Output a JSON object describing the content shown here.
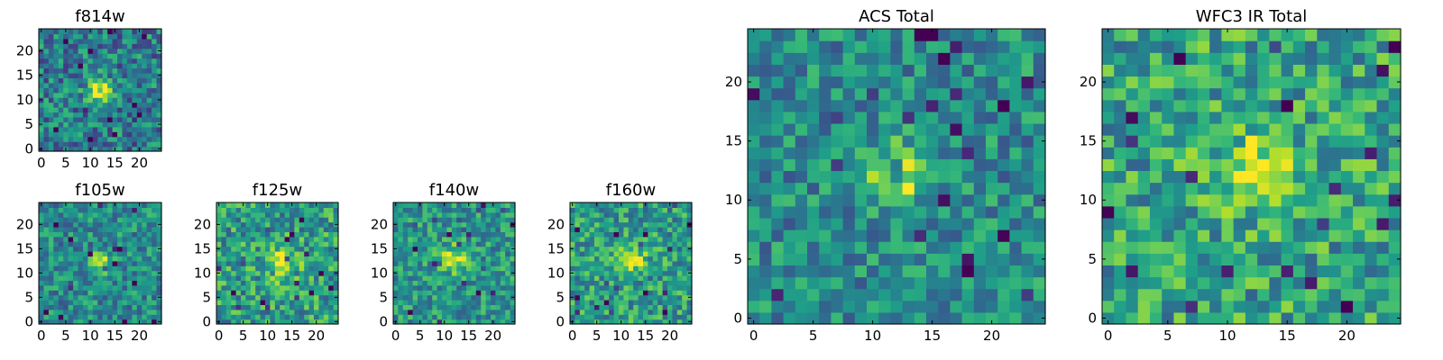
{
  "chart_data": [
    {
      "type": "heatmap",
      "title": "f814w",
      "cmap": "viridis",
      "grid": "25x25",
      "xlim": [
        0,
        24
      ],
      "ylim": [
        0,
        24
      ],
      "xticks": [
        "0",
        "5",
        "10",
        "15",
        "20"
      ],
      "yticks": [
        "0",
        "5",
        "10",
        "15",
        "20"
      ],
      "seed": 11,
      "peak": [
        12,
        12
      ],
      "peak_sigma": 1.8,
      "peak_amp": 0.55,
      "noise": 0.26,
      "base": 0.42
    },
    {
      "type": "heatmap",
      "title": "f105w",
      "cmap": "viridis",
      "grid": "25x25",
      "xlim": [
        0,
        24
      ],
      "ylim": [
        0,
        24
      ],
      "xticks": [
        "0",
        "5",
        "10",
        "15",
        "20"
      ],
      "yticks": [
        "0",
        "5",
        "10",
        "15",
        "20"
      ],
      "seed": 21,
      "peak": [
        12,
        12
      ],
      "peak_sigma": 1.6,
      "peak_amp": 0.45,
      "noise": 0.22,
      "base": 0.48
    },
    {
      "type": "heatmap",
      "title": "f125w",
      "cmap": "viridis",
      "grid": "25x25",
      "xlim": [
        0,
        24
      ],
      "ylim": [
        0,
        24
      ],
      "xticks": [
        "0",
        "5",
        "10",
        "15",
        "20"
      ],
      "yticks": [
        "0",
        "5",
        "10",
        "15",
        "20"
      ],
      "seed": 31,
      "peak": [
        13,
        12
      ],
      "peak_sigma": 2.4,
      "peak_amp": 0.38,
      "noise": 0.26,
      "base": 0.55
    },
    {
      "type": "heatmap",
      "title": "f140w",
      "cmap": "viridis",
      "grid": "25x25",
      "xlim": [
        0,
        24
      ],
      "ylim": [
        0,
        24
      ],
      "xticks": [
        "0",
        "5",
        "10",
        "15",
        "20"
      ],
      "yticks": [
        "0",
        "5",
        "10",
        "15",
        "20"
      ],
      "seed": 41,
      "peak": [
        12,
        13
      ],
      "peak_sigma": 1.9,
      "peak_amp": 0.4,
      "noise": 0.22,
      "base": 0.52
    },
    {
      "type": "heatmap",
      "title": "f160w",
      "cmap": "viridis",
      "grid": "25x25",
      "xlim": [
        0,
        24
      ],
      "ylim": [
        0,
        24
      ],
      "xticks": [
        "0",
        "5",
        "10",
        "15",
        "20"
      ],
      "yticks": [
        "0",
        "5",
        "10",
        "15",
        "20"
      ],
      "seed": 51,
      "peak": [
        12,
        13
      ],
      "peak_sigma": 2.0,
      "peak_amp": 0.42,
      "noise": 0.24,
      "base": 0.55
    },
    {
      "type": "heatmap",
      "title": "ACS Total",
      "cmap": "viridis",
      "grid": "25x25",
      "xlim": [
        0,
        24
      ],
      "ylim": [
        0,
        24
      ],
      "xticks": [
        "0",
        "5",
        "10",
        "15",
        "20"
      ],
      "yticks": [
        "0",
        "5",
        "10",
        "15",
        "20"
      ],
      "seed": 61,
      "peak": [
        12,
        12
      ],
      "peak_sigma": 1.7,
      "peak_amp": 0.5,
      "noise": 0.22,
      "base": 0.48
    },
    {
      "type": "heatmap",
      "title": "WFC3 IR Total",
      "cmap": "viridis",
      "grid": "25x25",
      "xlim": [
        0,
        24
      ],
      "ylim": [
        0,
        24
      ],
      "xticks": [
        "0",
        "5",
        "10",
        "15",
        "20"
      ],
      "yticks": [
        "0",
        "5",
        "10",
        "15",
        "20"
      ],
      "seed": 71,
      "peak": [
        12,
        13
      ],
      "peak_sigma": 2.2,
      "peak_amp": 0.35,
      "noise": 0.26,
      "base": 0.58
    }
  ]
}
